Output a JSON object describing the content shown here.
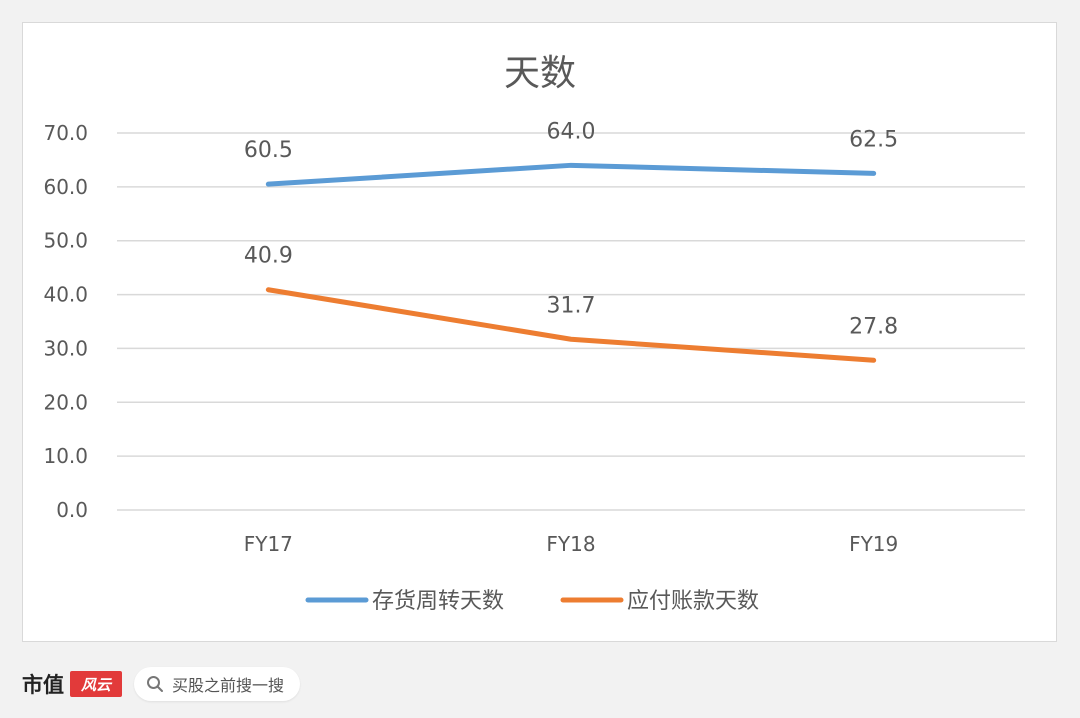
{
  "chart_data": {
    "type": "line",
    "title": "天数",
    "categories": [
      "FY17",
      "FY18",
      "FY19"
    ],
    "ylim": [
      0,
      70
    ],
    "yticks": [
      "0.0",
      "10.0",
      "20.0",
      "30.0",
      "40.0",
      "50.0",
      "60.0",
      "70.0"
    ],
    "grid": true,
    "legend_position": "bottom",
    "series": [
      {
        "name": "存货周转天数",
        "color": "#5b9bd5",
        "values": [
          60.5,
          64.0,
          62.5
        ],
        "labels": [
          "60.5",
          "64.0",
          "62.5"
        ]
      },
      {
        "name": "应付账款天数",
        "color": "#ed7d31",
        "values": [
          40.9,
          31.7,
          27.8
        ],
        "labels": [
          "40.9",
          "31.7",
          "27.8"
        ]
      }
    ]
  },
  "footer": {
    "brand_name": "市值",
    "brand_logo_text": "风云",
    "search_placeholder": "买股之前搜一搜"
  },
  "colors": {
    "grid": "#d9d9d9",
    "text": "#595959",
    "brand_red": "#e23a3a"
  }
}
